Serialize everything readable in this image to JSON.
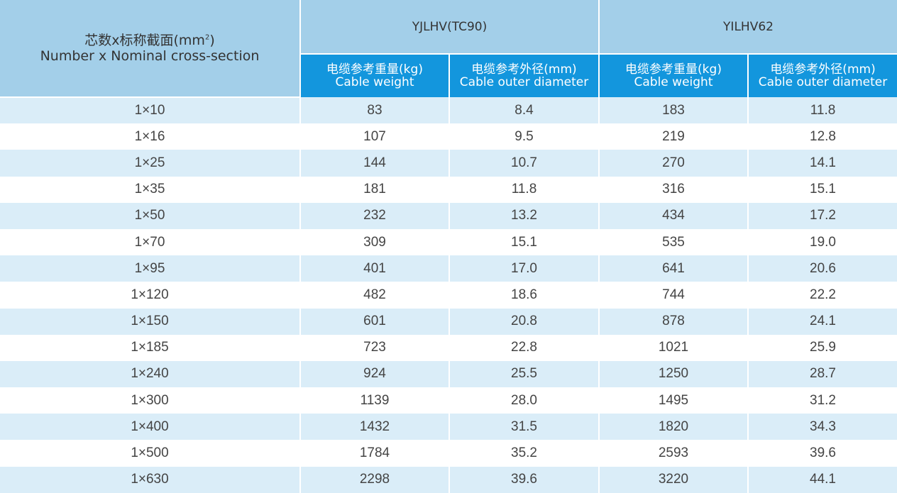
{
  "header": {
    "section_label_cn": "芯数x标称截面(mm",
    "section_label_sup": "2",
    "section_label_cn_end": ")",
    "section_label_en": "Number x Nominal cross-section",
    "groups": [
      "YJLHV(TC90)",
      "YILHV62"
    ],
    "weight_cn": "电缆参考重量(kg)",
    "weight_en": "Cable weight",
    "diameter_cn": "电缆参考外径(mm)",
    "diameter_en": "Cable outer diameter"
  },
  "rows": [
    [
      "1×10",
      "83",
      "8.4",
      "183",
      "11.8"
    ],
    [
      "1×16",
      "107",
      "9.5",
      "219",
      "12.8"
    ],
    [
      "1×25",
      "144",
      "10.7",
      "270",
      "14.1"
    ],
    [
      "1×35",
      "181",
      "11.8",
      "316",
      "15.1"
    ],
    [
      "1×50",
      "232",
      "13.2",
      "434",
      "17.2"
    ],
    [
      "1×70",
      "309",
      "15.1",
      "535",
      "19.0"
    ],
    [
      "1×95",
      "401",
      "17.0",
      "641",
      "20.6"
    ],
    [
      "1×120",
      "482",
      "18.6",
      "744",
      "22.2"
    ],
    [
      "1×150",
      "601",
      "20.8",
      "878",
      "24.1"
    ],
    [
      "1×185",
      "723",
      "22.8",
      "1021",
      "25.9"
    ],
    [
      "1×240",
      "924",
      "25.5",
      "1250",
      "28.7"
    ],
    [
      "1×300",
      "1139",
      "28.0",
      "1495",
      "31.2"
    ],
    [
      "1×400",
      "1432",
      "31.5",
      "1820",
      "34.3"
    ],
    [
      "1×500",
      "1784",
      "35.2",
      "2593",
      "39.6"
    ],
    [
      "1×630",
      "2298",
      "39.6",
      "3220",
      "44.1"
    ]
  ]
}
